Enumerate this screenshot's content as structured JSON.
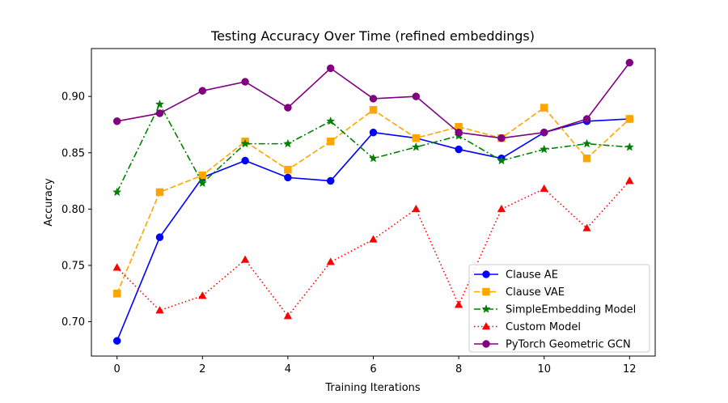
{
  "chart_data": {
    "type": "line",
    "title": "Testing Accuracy Over Time (refined embeddings)",
    "xlabel": "Training Iterations",
    "ylabel": "Accuracy",
    "xlim": [
      -0.6,
      12.6
    ],
    "ylim": [
      0.6695,
      0.9425
    ],
    "xticks": [
      0,
      2,
      4,
      6,
      8,
      10,
      12
    ],
    "yticks": [
      0.7,
      0.75,
      0.8,
      0.85,
      0.9
    ],
    "ytick_labels": [
      "0.70",
      "0.75",
      "0.80",
      "0.85",
      "0.90"
    ],
    "grid": false,
    "legend_position": "lower-right",
    "x": [
      0,
      1,
      2,
      3,
      4,
      5,
      6,
      7,
      8,
      9,
      10,
      11,
      12
    ],
    "series": [
      {
        "name": "Clause AE",
        "color": "#0000ff",
        "line_style": "solid",
        "marker": "circle",
        "values": [
          0.683,
          0.775,
          0.828,
          0.843,
          0.828,
          0.825,
          0.868,
          0.863,
          0.853,
          0.845,
          0.868,
          0.878,
          0.88
        ]
      },
      {
        "name": "Clause VAE",
        "color": "#ffa500",
        "line_style": "dashed",
        "marker": "square",
        "values": [
          0.725,
          0.815,
          0.83,
          0.86,
          0.835,
          0.86,
          0.888,
          0.863,
          0.873,
          0.863,
          0.89,
          0.845,
          0.88
        ]
      },
      {
        "name": "SimpleEmbedding Model",
        "color": "#008000",
        "line_style": "dashdot",
        "marker": "star",
        "values": [
          0.815,
          0.893,
          0.823,
          0.858,
          0.858,
          0.878,
          0.845,
          0.855,
          0.865,
          0.843,
          0.853,
          0.858,
          0.855
        ]
      },
      {
        "name": "Custom Model",
        "color": "#ff0000",
        "line_style": "dotted",
        "marker": "triangle",
        "values": [
          0.748,
          0.71,
          0.723,
          0.755,
          0.705,
          0.753,
          0.773,
          0.8,
          0.715,
          0.8,
          0.818,
          0.783,
          0.825
        ]
      },
      {
        "name": "PyTorch Geometric GCN",
        "color": "#800080",
        "line_style": "solid",
        "marker": "circle",
        "values": [
          0.878,
          0.885,
          0.905,
          0.913,
          0.89,
          0.925,
          0.898,
          0.9,
          0.868,
          0.863,
          0.868,
          0.88,
          0.93
        ]
      }
    ]
  }
}
